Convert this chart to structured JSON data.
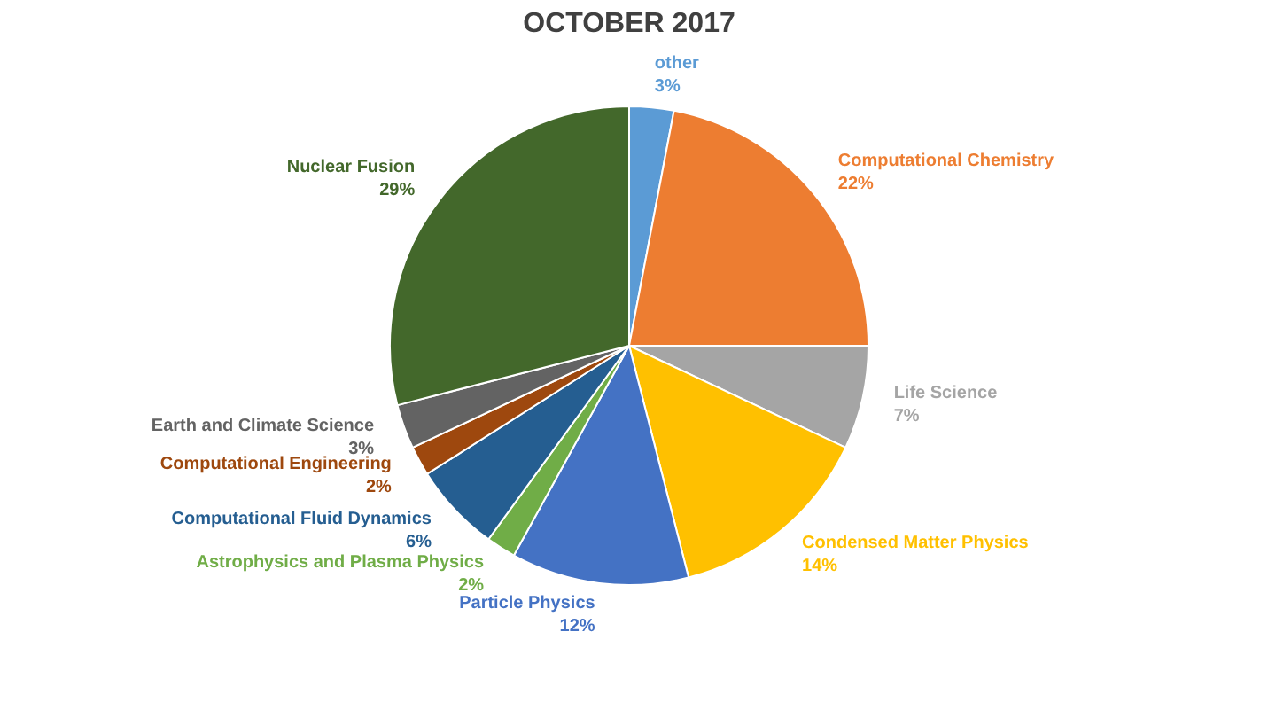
{
  "chart_data": {
    "type": "pie",
    "title": "OCTOBER 2017",
    "categories": [
      "other",
      "Computational Chemistry",
      "Life Science",
      "Condensed Matter Physics",
      "Particle Physics",
      "Astrophysics and Plasma Physics",
      "Computational Fluid Dynamics",
      "Computational Engineering",
      "Earth and Climate Science",
      "Nuclear Fusion"
    ],
    "values": [
      3,
      22,
      7,
      14,
      12,
      2,
      6,
      2,
      3,
      29
    ],
    "value_labels": [
      "3%",
      "22%",
      "7%",
      "14%",
      "12%",
      "2%",
      "6%",
      "2%",
      "3%",
      "29%"
    ],
    "colors": [
      "#5b9bd5",
      "#ed7d31",
      "#a5a5a5",
      "#ffc000",
      "#4472c4",
      "#70ad47",
      "#255e91",
      "#9e480e",
      "#636363",
      "#43682b"
    ],
    "legend": false
  }
}
